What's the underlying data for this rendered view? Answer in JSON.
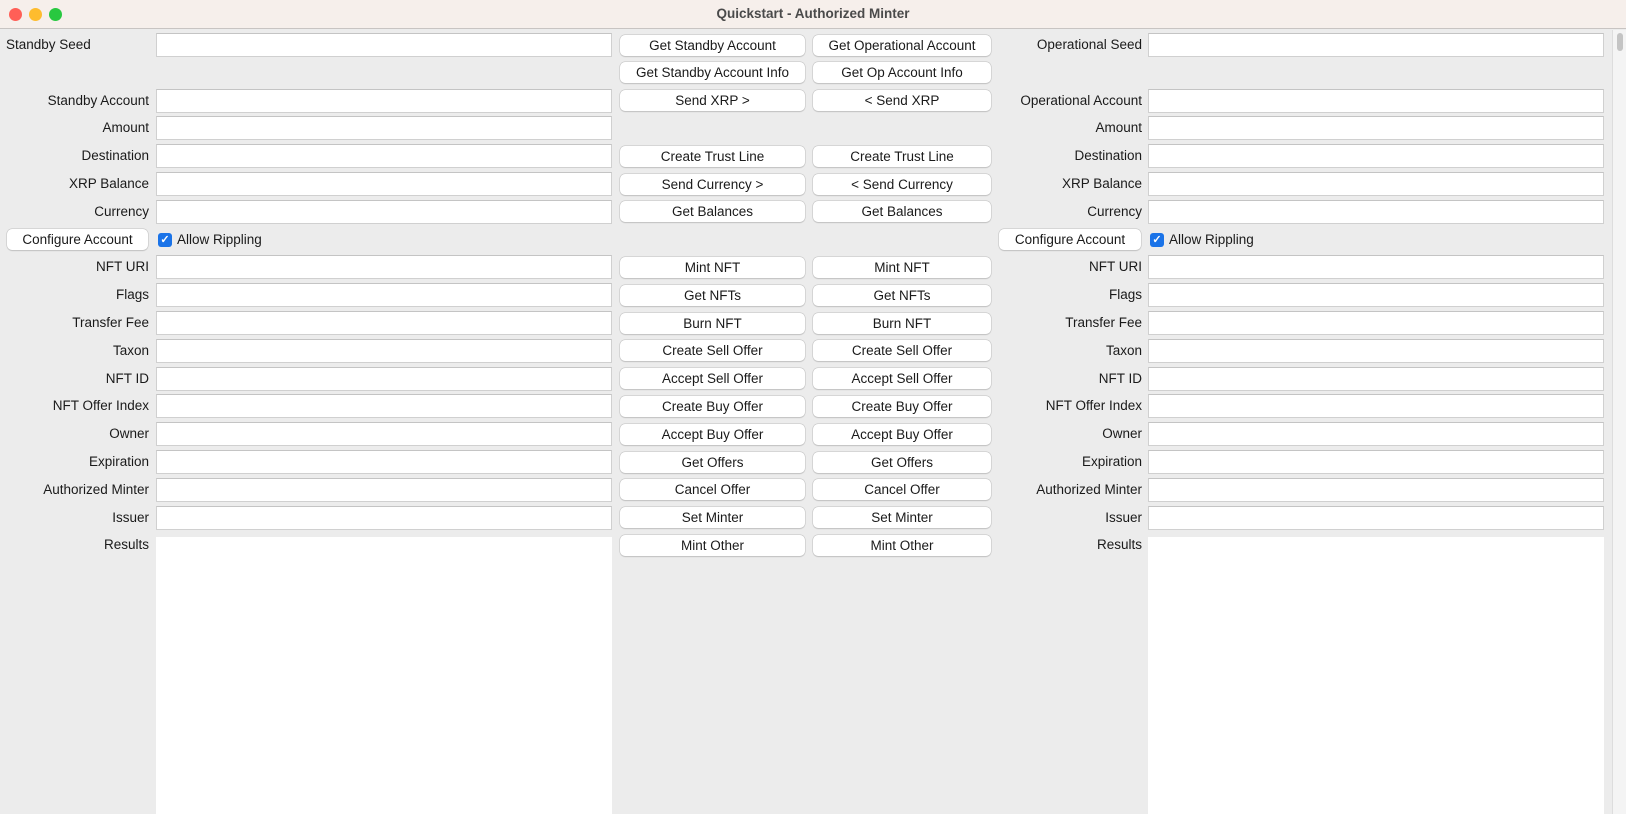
{
  "window": {
    "title": "Quickstart - Authorized Minter",
    "controls": {
      "close": "#ff5f57",
      "minimize": "#febc2e",
      "zoom": "#28c840"
    }
  },
  "left": {
    "labels": [
      "Standby Seed",
      "",
      "Standby Account",
      "Amount",
      "Destination",
      "XRP Balance",
      "Currency",
      "",
      "NFT URI",
      "Flags",
      "Transfer Fee",
      "Taxon",
      "NFT ID",
      "NFT Offer Index",
      "Owner",
      "Expiration",
      "Authorized Minter",
      "Issuer",
      "Results"
    ],
    "configure_button": "Configure Account",
    "allow_rippling": {
      "label": "Allow Rippling",
      "checked": true
    }
  },
  "right": {
    "labels": [
      "Operational Seed",
      "",
      "Operational Account",
      "Amount",
      "Destination",
      "XRP Balance",
      "Currency",
      "",
      "NFT URI",
      "Flags",
      "Transfer Fee",
      "Taxon",
      "NFT ID",
      "NFT Offer Index",
      "Owner",
      "Expiration",
      "Authorized Minter",
      "Issuer",
      "Results"
    ],
    "configure_button": "Configure Account",
    "allow_rippling": {
      "label": "Allow Rippling",
      "checked": true
    }
  },
  "buttons_standby": [
    "Get Standby Account",
    "Get Standby Account Info",
    "Send XRP >",
    "",
    "Create Trust Line",
    "Send Currency >",
    "Get Balances",
    "",
    "Mint NFT",
    "Get NFTs",
    "Burn NFT",
    "Create Sell Offer",
    "Accept Sell Offer",
    "Create Buy Offer",
    "Accept Buy Offer",
    "Get Offers",
    "Cancel Offer",
    "Set Minter",
    "Mint Other"
  ],
  "buttons_operational": [
    "Get Operational Account",
    "Get Op Account Info",
    "< Send XRP",
    "",
    "Create Trust Line",
    "< Send Currency",
    "Get Balances",
    "",
    "Mint NFT",
    "Get NFTs",
    "Burn NFT",
    "Create Sell Offer",
    "Accept Sell Offer",
    "Create Buy Offer",
    "Accept Buy Offer",
    "Get Offers",
    "Cancel Offer",
    "Set Minter",
    "Mint Other"
  ],
  "accent": "#1a73e8"
}
